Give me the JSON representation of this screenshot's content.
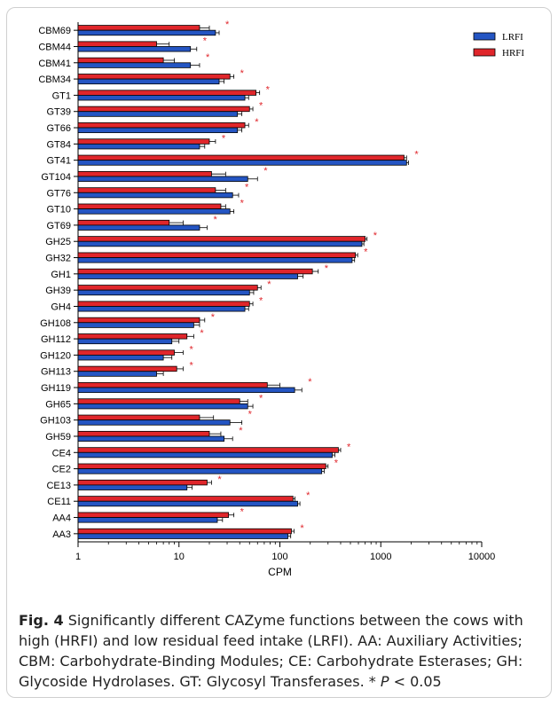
{
  "chart_data": {
    "type": "bar",
    "orientation": "horizontal",
    "x_scale": "log",
    "xlabel": "CPM",
    "xlim": [
      1,
      10000
    ],
    "x_ticks": [
      "1",
      "10",
      "100",
      "1000",
      "10000"
    ],
    "significance_marker": "*",
    "categories": [
      "CBM69",
      "CBM44",
      "CBM41",
      "CBM34",
      "GT1",
      "GT39",
      "GT66",
      "GT84",
      "GT41",
      "GT104",
      "GT76",
      "GT10",
      "GT69",
      "GH25",
      "GH32",
      "GH1",
      "GH39",
      "GH4",
      "GH108",
      "GH112",
      "GH120",
      "GH113",
      "GH119",
      "GH65",
      "GH103",
      "GH59",
      "CE4",
      "CE2",
      "CE13",
      "CE11",
      "AA4",
      "AA3"
    ],
    "series": [
      {
        "name": "LRFI",
        "color": "#2455c3",
        "values": [
          23,
          13,
          13,
          25,
          45,
          38,
          38,
          16,
          1800,
          48,
          34,
          32,
          16,
          650,
          520,
          150,
          50,
          45,
          14,
          8.5,
          7,
          6,
          140,
          48,
          32,
          28,
          330,
          260,
          12,
          150,
          24,
          120
        ],
        "errors": [
          2,
          2,
          3,
          3,
          4,
          4,
          4,
          2,
          80,
          12,
          5,
          3,
          3,
          30,
          30,
          20,
          5,
          4,
          2,
          1.5,
          1.5,
          1,
          25,
          6,
          10,
          6,
          20,
          15,
          1.5,
          8,
          3,
          8
        ]
      },
      {
        "name": "HRFI",
        "color": "#e0262b",
        "values": [
          16,
          6,
          7,
          32,
          58,
          50,
          45,
          20,
          1700,
          21,
          23,
          26,
          8,
          700,
          560,
          210,
          60,
          50,
          16,
          12,
          9,
          9.5,
          75,
          40,
          16,
          20,
          380,
          285,
          19,
          135,
          31,
          130
        ],
        "errors": [
          4,
          2,
          2,
          3,
          5,
          4,
          4,
          3,
          100,
          8,
          6,
          3,
          3,
          30,
          30,
          30,
          5,
          4,
          2,
          2,
          2,
          1.5,
          25,
          8,
          6,
          6,
          20,
          15,
          2,
          6,
          4,
          8
        ]
      }
    ],
    "legend_position": "top-right"
  },
  "caption": {
    "figure_label": "Fig. 4",
    "text": "Significantly different CAZyme functions between the cows with high (HRFI) and low residual feed intake (LRFI). AA: Auxiliary Activities; CBM: Carbohydrate-Binding Modules; CE: Carbohydrate Esterases; GH: Glycoside Hydrolases. GT: Glycosyl Transferases. *",
    "p_label": "P",
    "p_value": " < 0.05"
  }
}
